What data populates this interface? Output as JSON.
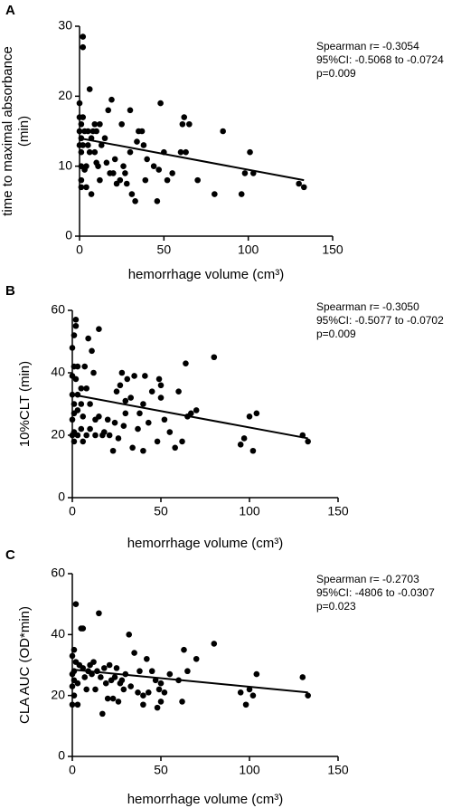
{
  "chart_data": [
    {
      "type": "scatter",
      "panel": "A",
      "y_label": [
        "time to maximal absorbance",
        "(min)"
      ],
      "x_label": "hemorrhage volume (cm³)",
      "annotation": [
        "Spearman r= -0.3054",
        "95%CI: -0.5068 to -0.0724",
        "p=0.009"
      ],
      "xlim": [
        0,
        150
      ],
      "xticks": [
        0,
        50,
        100,
        150
      ],
      "ylim": [
        0,
        30
      ],
      "yticks": [
        0,
        10,
        20,
        30
      ],
      "color": "#000000",
      "x": [
        0,
        0,
        0,
        0,
        1,
        1,
        1,
        1,
        1,
        1,
        2,
        2,
        2,
        2,
        3,
        3,
        4,
        4,
        5,
        5,
        6,
        6,
        7,
        7,
        8,
        9,
        9,
        10,
        10,
        11,
        12,
        12,
        13,
        15,
        16,
        17,
        18,
        19,
        20,
        21,
        22,
        24,
        25,
        26,
        27,
        28,
        30,
        30,
        31,
        33,
        34,
        35,
        37,
        38,
        39,
        40,
        44,
        46,
        47,
        48,
        50,
        52,
        55,
        60,
        61,
        62,
        63,
        65,
        70,
        80,
        85,
        96,
        98,
        101,
        103,
        130,
        133
      ],
      "y": [
        13,
        15,
        17,
        19,
        7,
        8,
        10,
        12,
        14,
        16,
        27,
        28.5,
        17,
        13,
        15,
        9.5,
        10,
        7,
        15,
        13,
        21,
        12,
        6,
        14,
        15,
        16,
        12,
        15,
        10.5,
        10,
        16,
        8,
        13,
        14,
        10.5,
        18,
        9,
        19.5,
        9,
        11,
        7.5,
        8,
        16,
        10,
        9,
        7.5,
        18,
        12,
        6,
        5,
        13.5,
        15,
        15,
        13,
        8,
        11,
        10,
        5,
        9.5,
        19,
        12,
        8,
        9,
        12,
        16,
        17,
        12,
        16,
        8,
        6,
        15,
        6,
        9,
        12,
        9,
        7.5,
        7
      ],
      "trend_line": {
        "x": [
          0,
          133
        ],
        "y": [
          14,
          8
        ]
      }
    },
    {
      "type": "scatter",
      "panel": "B",
      "y_label": [
        "10%CLT (min)"
      ],
      "x_label": "hemorrhage volume (cm³)",
      "annotation": [
        "Spearman r= -0.3050",
        "95%CI: -0.5077 to -0.0702",
        "p=0.009"
      ],
      "xlim": [
        0,
        150
      ],
      "xticks": [
        0,
        50,
        100,
        150
      ],
      "ylim": [
        0,
        60
      ],
      "yticks": [
        0,
        20,
        40,
        60
      ],
      "color": "#000000",
      "x": [
        0,
        0,
        0,
        0,
        0,
        1,
        1,
        1,
        1,
        1,
        1,
        2,
        2,
        2,
        3,
        3,
        3,
        3,
        5,
        5,
        5,
        6,
        6,
        7,
        8,
        8,
        9,
        10,
        10,
        11,
        12,
        13,
        13,
        15,
        15,
        17,
        18,
        20,
        21,
        23,
        24,
        25,
        26,
        27,
        28,
        29,
        30,
        30,
        31,
        33,
        34,
        35,
        37,
        38,
        40,
        40,
        41,
        43,
        45,
        48,
        49,
        50,
        50,
        52,
        55,
        58,
        60,
        62,
        64,
        65,
        67,
        70,
        80,
        95,
        97,
        100,
        102,
        104,
        130,
        133
      ],
      "y": [
        20,
        25,
        33,
        39,
        48,
        18,
        21,
        27,
        30,
        42,
        52,
        55,
        57,
        38,
        20,
        28,
        33,
        42,
        22,
        30,
        35,
        18,
        26,
        42,
        20,
        35,
        51,
        30,
        22,
        47,
        40,
        25,
        20,
        54,
        26,
        20,
        21,
        25,
        20,
        15,
        24,
        34,
        19,
        36,
        40,
        23,
        27,
        31,
        38,
        32,
        16,
        39,
        22,
        27,
        30,
        15,
        39,
        24,
        34,
        18,
        38,
        36,
        32,
        25,
        21,
        16,
        34,
        18,
        43,
        26,
        27,
        28,
        45,
        17,
        19,
        26,
        15,
        27,
        20,
        18
      ],
      "trend_line": {
        "x": [
          0,
          133
        ],
        "y": [
          33,
          19
        ]
      }
    },
    {
      "type": "scatter",
      "panel": "C",
      "y_label": [
        "CLA AUC (OD*min)"
      ],
      "x_label": "hemorrhage volume (cm³)",
      "annotation": [
        "Spearman r= -0.2703",
        "95%CI: -4806 to -0.0307",
        "p=0.023"
      ],
      "xlim": [
        0,
        150
      ],
      "xticks": [
        0,
        50,
        100,
        150
      ],
      "ylim": [
        0,
        60
      ],
      "yticks": [
        0,
        20,
        40,
        60
      ],
      "color": "#000000",
      "x": [
        0,
        0,
        0,
        0,
        1,
        1,
        1,
        1,
        2,
        2,
        3,
        3,
        4,
        5,
        6,
        6,
        7,
        8,
        9,
        10,
        11,
        12,
        13,
        14,
        15,
        16,
        17,
        18,
        19,
        20,
        21,
        22,
        23,
        24,
        25,
        26,
        27,
        28,
        29,
        30,
        32,
        33,
        35,
        37,
        38,
        40,
        40,
        42,
        43,
        45,
        47,
        48,
        49,
        50,
        50,
        52,
        55,
        60,
        62,
        63,
        65,
        70,
        80,
        95,
        98,
        100,
        102,
        104,
        130,
        133
      ],
      "y": [
        17,
        23,
        27,
        33,
        20,
        25,
        28,
        35,
        31,
        50,
        17,
        24,
        30,
        42,
        29,
        42,
        26,
        22,
        28,
        30,
        27,
        31,
        22,
        28,
        47,
        26,
        14,
        29,
        24,
        19,
        30,
        25,
        19,
        26,
        29,
        18,
        24,
        25,
        22,
        27,
        40,
        23,
        34,
        21,
        28,
        17,
        20,
        32,
        21,
        28,
        25,
        16,
        22,
        18,
        24,
        21,
        27,
        25,
        18,
        35,
        28,
        32,
        37,
        21,
        17,
        22,
        20,
        27,
        26,
        20
      ],
      "trend_line": {
        "x": [
          0,
          133
        ],
        "y": [
          28.5,
          21
        ]
      }
    }
  ]
}
